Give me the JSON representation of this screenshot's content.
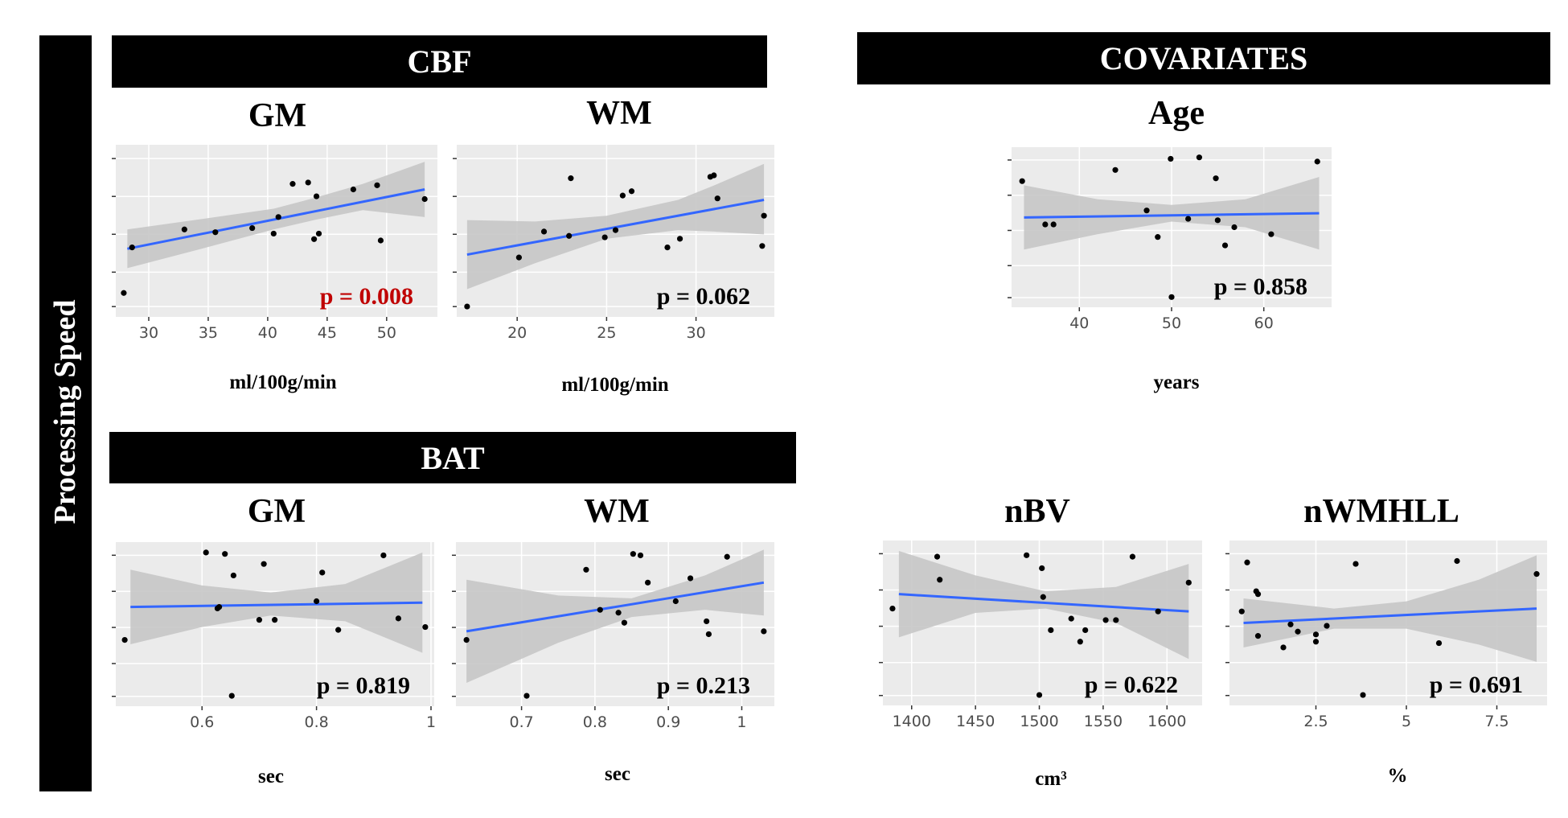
{
  "figure": {
    "y_label": "Processing Speed",
    "section_cbf": "CBF",
    "section_bat": "BAT",
    "section_covariates": "COVARIATES",
    "colors": {
      "panel_bg": "#ebebeb",
      "grid": "#ffffff",
      "ribbon": "#c6c6c6",
      "line": "#3366ff",
      "point": "#000000",
      "significant": "#c00000",
      "text": "#000000"
    }
  },
  "chart_data": [
    {
      "id": "cbf_gm",
      "type": "scatter",
      "title": "GM",
      "xlabel": "ml/100g/min",
      "p_value": "p = 0.008",
      "significant": true,
      "xlim": [
        27.5,
        54
      ],
      "ylim": [
        -0.15,
        1.05
      ],
      "xticks": [
        30,
        35,
        40,
        45,
        50
      ],
      "points": [
        [
          27.9,
          0.0
        ],
        [
          28.6,
          0.33
        ],
        [
          33.0,
          0.46
        ],
        [
          35.6,
          0.44
        ],
        [
          38.7,
          0.47
        ],
        [
          40.5,
          0.43
        ],
        [
          40.9,
          0.55
        ],
        [
          42.1,
          0.79
        ],
        [
          43.4,
          0.8
        ],
        [
          43.9,
          0.39
        ],
        [
          44.1,
          0.7
        ],
        [
          44.3,
          0.43
        ],
        [
          47.2,
          0.75
        ],
        [
          49.2,
          0.78
        ],
        [
          49.5,
          0.38
        ],
        [
          53.2,
          0.68
        ]
      ],
      "fit": [
        [
          28.2,
          0.32
        ],
        [
          53.2,
          0.75
        ]
      ],
      "band_upper": [
        [
          28.2,
          0.46
        ],
        [
          34,
          0.53
        ],
        [
          40.5,
          0.61
        ],
        [
          44,
          0.69
        ],
        [
          48,
          0.79
        ],
        [
          53.2,
          0.95
        ]
      ],
      "band_lower": [
        [
          28.2,
          0.18
        ],
        [
          34,
          0.31
        ],
        [
          40.5,
          0.46
        ],
        [
          44,
          0.53
        ],
        [
          48,
          0.6
        ],
        [
          53.2,
          0.55
        ]
      ]
    },
    {
      "id": "cbf_wm",
      "type": "scatter",
      "title": "WM",
      "xlabel": "ml/100g/min",
      "p_value": "p = 0.062",
      "significant": false,
      "xlim": [
        16.8,
        34.2
      ],
      "ylim": [
        -0.05,
        1.1
      ],
      "xticks": [
        20,
        25,
        30
      ],
      "points": [
        [
          17.2,
          0.0
        ],
        [
          20.1,
          0.34
        ],
        [
          21.5,
          0.52
        ],
        [
          22.9,
          0.49
        ],
        [
          23.0,
          0.89
        ],
        [
          24.9,
          0.48
        ],
        [
          25.5,
          0.53
        ],
        [
          25.9,
          0.77
        ],
        [
          26.4,
          0.8
        ],
        [
          28.4,
          0.41
        ],
        [
          29.1,
          0.47
        ],
        [
          30.8,
          0.9
        ],
        [
          31.0,
          0.91
        ],
        [
          31.2,
          0.75
        ],
        [
          33.7,
          0.42
        ],
        [
          33.8,
          0.63
        ]
      ],
      "fit": [
        [
          17.2,
          0.36
        ],
        [
          33.8,
          0.74
        ]
      ],
      "band_upper": [
        [
          17.2,
          0.6
        ],
        [
          21,
          0.59
        ],
        [
          25,
          0.63
        ],
        [
          29,
          0.74
        ],
        [
          31,
          0.84
        ],
        [
          33.8,
          0.99
        ]
      ],
      "band_lower": [
        [
          17.2,
          0.12
        ],
        [
          21,
          0.3
        ],
        [
          25,
          0.47
        ],
        [
          29,
          0.53
        ],
        [
          31,
          0.52
        ],
        [
          33.8,
          0.5
        ]
      ]
    },
    {
      "id": "cov_age",
      "type": "scatter",
      "title": "Age",
      "xlabel": "years",
      "p_value": "p = 0.858",
      "significant": false,
      "xlim": [
        33,
        67
      ],
      "ylim": [
        -0.05,
        1.05
      ],
      "xticks": [
        40,
        50,
        60
      ],
      "points": [
        [
          33.8,
          0.83
        ],
        [
          36.3,
          0.52
        ],
        [
          37.2,
          0.52
        ],
        [
          43.9,
          0.91
        ],
        [
          47.3,
          0.62
        ],
        [
          48.5,
          0.43
        ],
        [
          49.9,
          0.99
        ],
        [
          50.0,
          0.0
        ],
        [
          51.8,
          0.56
        ],
        [
          53.0,
          1.0
        ],
        [
          54.8,
          0.85
        ],
        [
          55.0,
          0.55
        ],
        [
          55.8,
          0.37
        ],
        [
          56.8,
          0.5
        ],
        [
          60.8,
          0.45
        ],
        [
          65.8,
          0.97
        ]
      ],
      "fit": [
        [
          34.0,
          0.57
        ],
        [
          66.0,
          0.6
        ]
      ],
      "band_upper": [
        [
          34.0,
          0.8
        ],
        [
          42,
          0.7
        ],
        [
          50,
          0.66
        ],
        [
          58,
          0.7
        ],
        [
          66,
          0.86
        ]
      ],
      "band_lower": [
        [
          34.0,
          0.34
        ],
        [
          42,
          0.45
        ],
        [
          50,
          0.54
        ],
        [
          58,
          0.5
        ],
        [
          66,
          0.34
        ]
      ]
    },
    {
      "id": "bat_gm",
      "type": "scatter",
      "title": "GM",
      "xlabel": "sec",
      "p_value": "p = 0.819",
      "significant": false,
      "xlim": [
        0.455,
        1.0
      ],
      "ylim": [
        -0.05,
        1.05
      ],
      "xticks": [
        0.6,
        0.8,
        1.0
      ],
      "points": [
        [
          0.465,
          0.39
        ],
        [
          0.607,
          1.0
        ],
        [
          0.627,
          0.61
        ],
        [
          0.63,
          0.62
        ],
        [
          0.64,
          0.99
        ],
        [
          0.652,
          0.0
        ],
        [
          0.655,
          0.84
        ],
        [
          0.7,
          0.53
        ],
        [
          0.708,
          0.92
        ],
        [
          0.727,
          0.53
        ],
        [
          0.8,
          0.66
        ],
        [
          0.81,
          0.86
        ],
        [
          0.838,
          0.46
        ],
        [
          0.917,
          0.98
        ],
        [
          0.943,
          0.54
        ],
        [
          0.99,
          0.48
        ]
      ],
      "fit": [
        [
          0.475,
          0.62
        ],
        [
          0.985,
          0.65
        ]
      ],
      "band_upper": [
        [
          0.475,
          0.88
        ],
        [
          0.6,
          0.77
        ],
        [
          0.72,
          0.72
        ],
        [
          0.85,
          0.78
        ],
        [
          0.985,
          1.0
        ]
      ],
      "band_lower": [
        [
          0.475,
          0.36
        ],
        [
          0.6,
          0.48
        ],
        [
          0.72,
          0.56
        ],
        [
          0.85,
          0.52
        ],
        [
          0.985,
          0.3
        ]
      ]
    },
    {
      "id": "bat_wm",
      "type": "scatter",
      "title": "WM",
      "xlabel": "sec",
      "p_value": "p = 0.213",
      "significant": false,
      "xlim": [
        0.615,
        1.04
      ],
      "ylim": [
        -0.05,
        1.05
      ],
      "xticks": [
        0.7,
        0.8,
        0.9,
        1.0
      ],
      "points": [
        [
          0.625,
          0.39
        ],
        [
          0.707,
          0.0
        ],
        [
          0.788,
          0.88
        ],
        [
          0.807,
          0.6
        ],
        [
          0.832,
          0.58
        ],
        [
          0.84,
          0.51
        ],
        [
          0.852,
          0.99
        ],
        [
          0.862,
          0.98
        ],
        [
          0.872,
          0.79
        ],
        [
          0.91,
          0.66
        ],
        [
          0.93,
          0.82
        ],
        [
          0.952,
          0.52
        ],
        [
          0.955,
          0.43
        ],
        [
          0.98,
          0.97
        ],
        [
          1.03,
          0.45
        ]
      ],
      "fit": [
        [
          0.625,
          0.45
        ],
        [
          1.03,
          0.79
        ]
      ],
      "band_upper": [
        [
          0.625,
          0.81
        ],
        [
          0.75,
          0.7
        ],
        [
          0.85,
          0.68
        ],
        [
          0.95,
          0.84
        ],
        [
          1.03,
          1.02
        ]
      ],
      "band_lower": [
        [
          0.625,
          0.09
        ],
        [
          0.75,
          0.37
        ],
        [
          0.85,
          0.55
        ],
        [
          0.95,
          0.6
        ],
        [
          1.03,
          0.56
        ]
      ]
    },
    {
      "id": "cov_nbv",
      "type": "scatter",
      "title": "nBV",
      "xlabel": "cm³",
      "p_value": "p = 0.622",
      "significant": false,
      "xlim": [
        1380,
        1625
      ],
      "ylim": [
        -0.05,
        1.05
      ],
      "xticks": [
        1400,
        1450,
        1500,
        1550,
        1600
      ],
      "points": [
        [
          1385,
          0.6
        ],
        [
          1420,
          0.96
        ],
        [
          1422,
          0.8
        ],
        [
          1490,
          0.97
        ],
        [
          1500,
          0.0
        ],
        [
          1502,
          0.88
        ],
        [
          1503,
          0.68
        ],
        [
          1509,
          0.45
        ],
        [
          1525,
          0.53
        ],
        [
          1532,
          0.37
        ],
        [
          1536,
          0.45
        ],
        [
          1552,
          0.52
        ],
        [
          1560,
          0.52
        ],
        [
          1573,
          0.96
        ],
        [
          1593,
          0.58
        ],
        [
          1617,
          0.78
        ]
      ],
      "fit": [
        [
          1390,
          0.7
        ],
        [
          1617,
          0.58
        ]
      ],
      "band_upper": [
        [
          1390,
          1.0
        ],
        [
          1450,
          0.83
        ],
        [
          1505,
          0.72
        ],
        [
          1560,
          0.75
        ],
        [
          1617,
          0.91
        ]
      ],
      "band_lower": [
        [
          1390,
          0.4
        ],
        [
          1450,
          0.57
        ],
        [
          1505,
          0.6
        ],
        [
          1560,
          0.5
        ],
        [
          1617,
          0.25
        ]
      ]
    },
    {
      "id": "cov_nwmhll",
      "type": "scatter",
      "title": "nWMHLL",
      "xlabel": "%",
      "p_value": "p = 0.691",
      "significant": false,
      "xlim": [
        0.2,
        8.8
      ],
      "ylim": [
        -0.05,
        1.05
      ],
      "xticks": [
        2.5,
        5.0,
        7.5
      ],
      "points": [
        [
          0.45,
          0.58
        ],
        [
          0.6,
          0.92
        ],
        [
          0.85,
          0.72
        ],
        [
          0.9,
          0.7
        ],
        [
          0.9,
          0.41
        ],
        [
          1.6,
          0.33
        ],
        [
          1.8,
          0.49
        ],
        [
          2.0,
          0.44
        ],
        [
          2.5,
          0.42
        ],
        [
          2.5,
          0.37
        ],
        [
          2.8,
          0.48
        ],
        [
          3.6,
          0.91
        ],
        [
          3.8,
          0.0
        ],
        [
          5.9,
          0.36
        ],
        [
          6.4,
          0.93
        ],
        [
          8.6,
          0.84
        ]
      ],
      "fit": [
        [
          0.5,
          0.5
        ],
        [
          8.6,
          0.6
        ]
      ],
      "band_upper": [
        [
          0.5,
          0.67
        ],
        [
          3,
          0.6
        ],
        [
          5,
          0.65
        ],
        [
          7,
          0.8
        ],
        [
          8.6,
          0.97
        ]
      ],
      "band_lower": [
        [
          0.5,
          0.33
        ],
        [
          3,
          0.46
        ],
        [
          5,
          0.46
        ],
        [
          7,
          0.35
        ],
        [
          8.6,
          0.23
        ]
      ]
    }
  ]
}
